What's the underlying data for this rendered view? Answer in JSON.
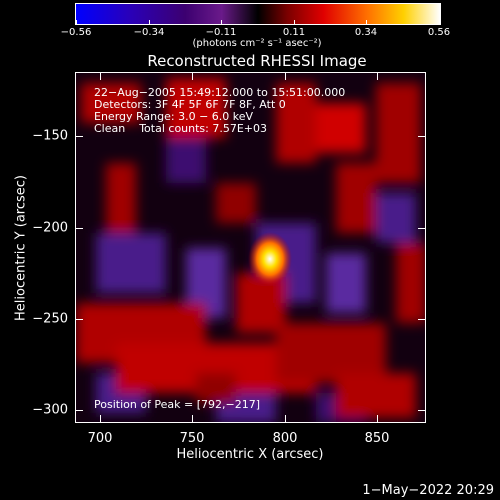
{
  "colorbar": {
    "tick_labels": [
      "−0.56",
      "−0.34",
      "−0.11",
      "0.11",
      "0.34",
      "0.56"
    ],
    "unit_label": "(photons cm⁻² s⁻¹ asec⁻²)",
    "colors": [
      "#0000ff",
      "#1a00a0",
      "#3c0070",
      "#6a1a8a",
      "#000000",
      "#7a0000",
      "#e00000",
      "#ff7000",
      "#ffd000",
      "#ffffff"
    ]
  },
  "plot": {
    "title": "Reconstructed RHESSI Image",
    "info_lines": [
      "22−Aug−2005 15:49:12.000 to 15:51:00.000",
      "Detectors: 3F 4F 5F 6F 7F 8F, Att 0",
      "Energy Range: 3.0 − 6.0 keV",
      "Clean    Total counts: 7.57E+03"
    ],
    "peak_label": "Position of Peak = [792,−217]",
    "x_axis_label": "Heliocentric X (arcsec)",
    "y_axis_label": "Heliocentric Y (arcsec)",
    "x_ticks": [
      "700",
      "750",
      "800",
      "850"
    ],
    "y_ticks": [
      "−150",
      "−200",
      "−250",
      "−300"
    ]
  },
  "footer": {
    "date": "1−May−2022 20:29"
  }
}
